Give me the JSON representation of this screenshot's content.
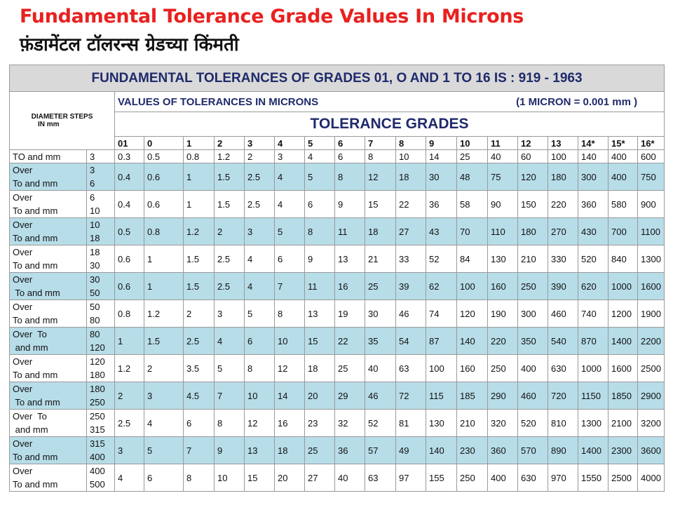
{
  "title_en": "Fundamental Tolerance Grade Values In Microns",
  "title_hi": "फ़ंडामेंटल टॉलरन्स ग्रेडच्या किंमती",
  "table": {
    "main_header": "FUNDAMENTAL  TOLERANCES OF GRADES 01, O AND 1 TO 16 IS : 919 - 1963",
    "diameter_header_line1": "DIAMETER STEPS",
    "diameter_header_line2": "IN mm",
    "values_header": "VALUES OF TOLERANCES  IN MICRONS",
    "micron_note": "(1 MICRON = 0.001 mm )",
    "grades_header": "TOLERANCE GRADES",
    "grades": [
      "01",
      "0",
      "1",
      "2",
      "3",
      "4",
      "5",
      "6",
      "7",
      "8",
      "9",
      "10",
      "11",
      "12",
      "13",
      "14*",
      "15*",
      "16*"
    ],
    "first_row": {
      "label": "TO and mm",
      "limit": "3",
      "values": [
        "0.3",
        "0.5",
        "0.8",
        "1.2",
        "2",
        "3",
        "4",
        "6",
        "8",
        "10",
        "14",
        "25",
        "40",
        "60",
        "100",
        "140",
        "400",
        "600"
      ]
    },
    "rows": [
      {
        "l1": "Over",
        "l2": "To and mm",
        "from": "3",
        "to": "6",
        "values": [
          "0.4",
          "0.6",
          "1",
          "1.5",
          "2.5",
          "4",
          "5",
          "8",
          "12",
          "18",
          "30",
          "48",
          "75",
          "120",
          "180",
          "300",
          "400",
          "750"
        ]
      },
      {
        "l1": "Over",
        "l2": "To and mm",
        "from": "6",
        "to": "10",
        "values": [
          "0.4",
          "0.6",
          "1",
          "1.5",
          "2.5",
          "4",
          "6",
          "9",
          "15",
          "22",
          "36",
          "58",
          "90",
          "150",
          "220",
          "360",
          "580",
          "900"
        ]
      },
      {
        "l1": "Over",
        "l2": "To and mm",
        "from": "10",
        "to": "18",
        "values": [
          "0.5",
          "0.8",
          "1.2",
          "2",
          "3",
          "5",
          "8",
          "11",
          "18",
          "27",
          "43",
          "70",
          "110",
          "180",
          "270",
          "430",
          "700",
          "1100"
        ]
      },
      {
        "l1": "Over",
        "l2": "To and mm",
        "from": "18",
        "to": "30",
        "values": [
          "0.6",
          "1",
          "1.5",
          "2.5",
          "4",
          "6",
          "9",
          "13",
          "21",
          "33",
          "52",
          "84",
          "130",
          "210",
          "330",
          "520",
          "840",
          "1300"
        ]
      },
      {
        "l1": "Over",
        "l2": " To and mm",
        "from": "30",
        "to": "50",
        "values": [
          "0.6",
          "1",
          "1.5",
          "2.5",
          "4",
          "7",
          "11",
          "16",
          "25",
          "39",
          "62",
          "100",
          "160",
          "250",
          "390",
          "620",
          "1000",
          "1600"
        ]
      },
      {
        "l1": "Over",
        "l2": "To and mm",
        "from": "50",
        "to": "80",
        "values": [
          "0.8",
          "1.2",
          "2",
          "3",
          "5",
          "8",
          "13",
          "19",
          "30",
          "46",
          "74",
          "120",
          "190",
          "300",
          "460",
          "740",
          "1200",
          "1900"
        ]
      },
      {
        "l1": "Over  To",
        "l2": " and mm",
        "from": "80",
        "to": "120",
        "values": [
          "1",
          "1.5",
          "2.5",
          "4",
          "6",
          "10",
          "15",
          "22",
          "35",
          "54",
          "87",
          "140",
          "220",
          "350",
          "540",
          "870",
          "1400",
          "2200"
        ]
      },
      {
        "l1": "Over",
        "l2": "To and mm",
        "from": "120",
        "to": "180",
        "values": [
          "1.2",
          "2",
          "3.5",
          "5",
          "8",
          "12",
          "18",
          "25",
          "40",
          "63",
          "100",
          "160",
          "250",
          "400",
          "630",
          "1000",
          "1600",
          "2500"
        ]
      },
      {
        "l1": "Over",
        "l2": " To and mm",
        "from": "180",
        "to": "250",
        "values": [
          "2",
          "3",
          "4.5",
          "7",
          "10",
          "14",
          "20",
          "29",
          "46",
          "72",
          "115",
          "185",
          "290",
          "460",
          "720",
          "1150",
          "1850",
          "2900"
        ]
      },
      {
        "l1": "Over  To",
        "l2": " and mm",
        "from": "250",
        "to": "315",
        "values": [
          "2.5",
          "4",
          "6",
          "8",
          "12",
          "16",
          "23",
          "32",
          "52",
          "81",
          "130",
          "210",
          "320",
          "520",
          "810",
          "1300",
          "2100",
          "3200"
        ]
      },
      {
        "l1": "Over",
        "l2": "To and mm",
        "from": "315",
        "to": "400",
        "values": [
          "3",
          "5",
          "7",
          "9",
          "13",
          "18",
          "25",
          "36",
          "57",
          "49",
          "140",
          "230",
          "360",
          "570",
          "890",
          "1400",
          "2300",
          "3600"
        ]
      },
      {
        "l1": "Over",
        "l2": "To and mm",
        "from": "400",
        "to": "500",
        "values": [
          "4",
          "6",
          "8",
          "10",
          "15",
          "20",
          "27",
          "40",
          "63",
          "97",
          "155",
          "250",
          "400",
          "630",
          "970",
          "1550",
          "2500",
          "4000"
        ]
      }
    ]
  },
  "colors": {
    "title": "#e8211f",
    "header_text": "#1f2a6b",
    "band": "#b7dde8",
    "header_bg": "#d9d9d9"
  }
}
